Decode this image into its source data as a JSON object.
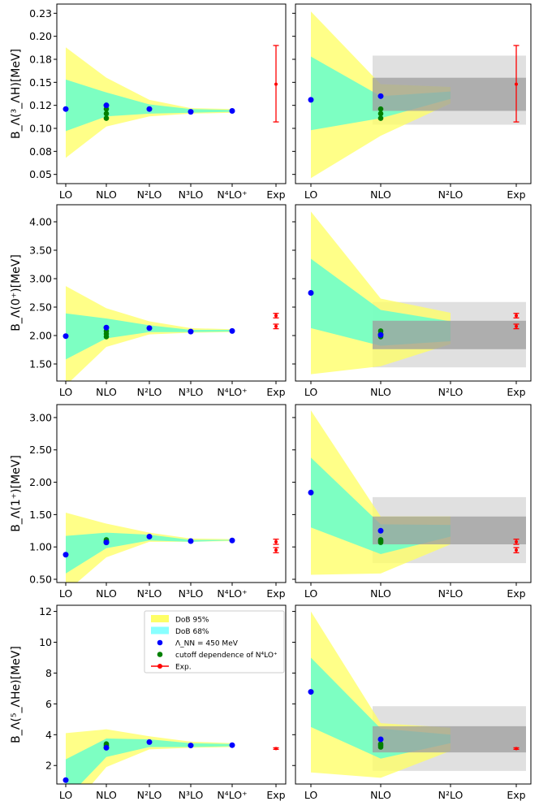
{
  "colors": {
    "dob95": "#ffff66",
    "dob68": "#66ffcc",
    "dob68_legend": "#88ffff",
    "point": "#0000ff",
    "cutoff": "#008000",
    "exp": "#ff0000",
    "band_light": "#e0e0e0",
    "band_dark": "#9e9e9e"
  },
  "legend": {
    "items": [
      {
        "label": "DoB 95%"
      },
      {
        "label": "DoB 68%"
      },
      {
        "label": "Λ_NN = 450 MeV"
      },
      {
        "label": "cutoff dependence of N⁴LO⁺"
      },
      {
        "label": "Exp."
      }
    ]
  },
  "chart_data": [
    {
      "type": "area",
      "panel": "row1-left",
      "ylabel": "B_Λ(³_ΛH)[MeV]",
      "categories": [
        "LO",
        "NLO",
        "N²LO",
        "N³LO",
        "N⁴LO⁺",
        "Exp"
      ],
      "ylim": [
        0.04,
        0.235
      ],
      "yticks": [
        "0.05",
        "0.08",
        "0.10",
        "0.12",
        "0.15",
        "0.18",
        "0.20",
        "0.23"
      ],
      "yticks_values": [
        0.05,
        0.075,
        0.1,
        0.125,
        0.15,
        0.175,
        0.2,
        0.225
      ],
      "band95_upper": [
        0.188,
        0.155,
        0.131,
        0.122,
        0.121
      ],
      "band95_lower": [
        0.068,
        0.102,
        0.113,
        0.116,
        0.117
      ],
      "band68_upper": [
        0.153,
        0.139,
        0.126,
        0.121,
        0.12
      ],
      "band68_lower": [
        0.097,
        0.113,
        0.116,
        0.117,
        0.118
      ],
      "points": [
        0.121,
        0.125,
        0.121,
        0.118,
        0.119
      ],
      "cutoff_points": [
        0.111,
        0.116,
        0.121
      ],
      "exp": [
        {
          "value": 0.148,
          "err_low": 0.041,
          "err_high": 0.042
        }
      ]
    },
    {
      "type": "area",
      "panel": "row1-right",
      "categories": [
        "LO",
        "NLO",
        "N²LO",
        "Exp"
      ],
      "ylim": [
        0.04,
        0.235
      ],
      "band95_upper": [
        0.227,
        0.148,
        0.145
      ],
      "band95_lower": [
        0.046,
        0.092,
        0.127
      ],
      "band68_upper": [
        0.178,
        0.135,
        0.14
      ],
      "band68_lower": [
        0.098,
        0.111,
        0.132
      ],
      "points": [
        0.131,
        0.135
      ],
      "cutoff_points": [
        0.111,
        0.116,
        0.121
      ],
      "exp": [
        {
          "value": 0.148,
          "err_low": 0.041,
          "err_high": 0.042
        }
      ],
      "band_light": [
        0.104,
        0.179
      ],
      "band_dark": [
        0.119,
        0.155
      ]
    },
    {
      "type": "area",
      "panel": "row2-left",
      "ylabel": "B_Λ(0⁺)[MeV]",
      "categories": [
        "LO",
        "NLO",
        "N²LO",
        "N³LO",
        "N⁴LO⁺",
        "Exp"
      ],
      "ylim": [
        1.2,
        4.3
      ],
      "yticks": [
        "1.50",
        "2.00",
        "2.50",
        "3.00",
        "3.50",
        "4.00"
      ],
      "yticks_values": [
        1.5,
        2.0,
        2.5,
        3.0,
        3.5,
        4.0
      ],
      "band95_upper": [
        2.87,
        2.48,
        2.25,
        2.13,
        2.11
      ],
      "band95_lower": [
        1.12,
        1.8,
        2.02,
        2.05,
        2.06
      ],
      "band68_upper": [
        2.39,
        2.3,
        2.18,
        2.1,
        2.1
      ],
      "band68_lower": [
        1.58,
        1.95,
        2.06,
        2.06,
        2.07
      ],
      "points": [
        1.99,
        2.14,
        2.13,
        2.07,
        2.08
      ],
      "cutoff_points": [
        1.98,
        2.03,
        2.08
      ],
      "exp": [
        {
          "value": 2.35,
          "err_low": 0.04,
          "err_high": 0.04
        },
        {
          "value": 2.16,
          "err_low": 0.04,
          "err_high": 0.04
        }
      ]
    },
    {
      "type": "area",
      "panel": "row2-right",
      "categories": [
        "LO",
        "NLO",
        "N²LO",
        "Exp"
      ],
      "ylim": [
        1.2,
        4.3
      ],
      "band95_upper": [
        4.18,
        2.65,
        2.4
      ],
      "band95_lower": [
        1.32,
        1.46,
        1.85
      ],
      "band68_upper": [
        3.35,
        2.45,
        2.25
      ],
      "band68_lower": [
        2.13,
        1.82,
        1.9
      ],
      "points": [
        2.75,
        2.01
      ],
      "cutoff_points": [
        1.98,
        2.03,
        2.08
      ],
      "exp": [
        {
          "value": 2.35,
          "err_low": 0.04,
          "err_high": 0.04
        },
        {
          "value": 2.16,
          "err_low": 0.04,
          "err_high": 0.04
        }
      ],
      "band_light": [
        1.44,
        2.59
      ],
      "band_dark": [
        1.76,
        2.26
      ]
    },
    {
      "type": "area",
      "panel": "row3-left",
      "ylabel": "B_Λ(1⁺)[MeV]",
      "categories": [
        "LO",
        "NLO",
        "N²LO",
        "N³LO",
        "N⁴LO⁺",
        "Exp"
      ],
      "ylim": [
        0.45,
        3.2
      ],
      "yticks": [
        "0.50",
        "1.00",
        "1.50",
        "2.00",
        "2.50",
        "3.00"
      ],
      "yticks_values": [
        0.5,
        1.0,
        1.5,
        2.0,
        2.5,
        3.0
      ],
      "band95_upper": [
        1.53,
        1.36,
        1.22,
        1.13,
        1.12
      ],
      "band95_lower": [
        0.3,
        0.84,
        1.08,
        1.08,
        1.09
      ],
      "band68_upper": [
        1.17,
        1.22,
        1.19,
        1.11,
        1.11
      ],
      "band68_lower": [
        0.59,
        0.98,
        1.1,
        1.08,
        1.1
      ],
      "points": [
        0.88,
        1.07,
        1.16,
        1.09,
        1.1
      ],
      "cutoff_points": [
        1.07,
        1.09,
        1.11
      ],
      "exp": [
        {
          "value": 1.08,
          "err_low": 0.04,
          "err_high": 0.04
        },
        {
          "value": 0.95,
          "err_low": 0.04,
          "err_high": 0.04
        }
      ]
    },
    {
      "type": "area",
      "panel": "row3-right",
      "categories": [
        "LO",
        "NLO",
        "N²LO",
        "Exp"
      ],
      "ylim": [
        0.45,
        3.2
      ],
      "band95_upper": [
        3.11,
        1.47,
        1.47
      ],
      "band95_lower": [
        0.57,
        0.59,
        1.04
      ],
      "band68_upper": [
        2.38,
        1.35,
        1.34
      ],
      "band68_lower": [
        1.3,
        0.89,
        1.16
      ],
      "points": [
        1.84,
        1.25
      ],
      "cutoff_points": [
        1.07,
        1.09,
        1.11
      ],
      "exp": [
        {
          "value": 1.08,
          "err_low": 0.04,
          "err_high": 0.04
        },
        {
          "value": 0.95,
          "err_low": 0.04,
          "err_high": 0.04
        }
      ],
      "band_light": [
        0.75,
        1.77
      ],
      "band_dark": [
        1.04,
        1.47
      ]
    },
    {
      "type": "area",
      "panel": "row4-left",
      "ylabel": "B_Λ(⁵_ΛHe)[MeV]",
      "categories": [
        "LO",
        "NLO",
        "N²LO",
        "N³LO",
        "N⁴LO⁺",
        "Exp"
      ],
      "ylim": [
        0.8,
        12.4
      ],
      "yticks": [
        "2",
        "4",
        "6",
        "8",
        "10",
        "12"
      ],
      "yticks_values": [
        2,
        4,
        6,
        8,
        10,
        12
      ],
      "band95_upper": [
        4.1,
        4.35,
        3.9,
        3.55,
        3.45
      ],
      "band95_lower": [
        -1.2,
        1.9,
        3.05,
        3.15,
        3.2
      ],
      "band68_upper": [
        2.4,
        3.75,
        3.7,
        3.45,
        3.4
      ],
      "band68_lower": [
        -0.2,
        2.55,
        3.2,
        3.2,
        3.25
      ],
      "points": [
        1.05,
        3.15,
        3.52,
        3.3,
        3.32
      ],
      "cutoff_points": [
        3.2,
        3.3,
        3.4
      ],
      "exp": [
        {
          "value": 3.1,
          "err_low": 0.05,
          "err_high": 0.05
        }
      ],
      "legend_loc": "upper-center"
    },
    {
      "type": "area",
      "panel": "row4-right",
      "categories": [
        "LO",
        "NLO",
        "N²LO",
        "Exp"
      ],
      "ylim": [
        0.8,
        12.4
      ],
      "band95_upper": [
        12.0,
        4.75,
        4.45
      ],
      "band95_lower": [
        1.55,
        1.2,
        2.95
      ],
      "band68_upper": [
        9.0,
        4.4,
        4.0
      ],
      "band68_lower": [
        4.5,
        2.45,
        3.45
      ],
      "points": [
        6.78,
        3.7
      ],
      "cutoff_points": [
        3.2,
        3.3,
        3.4
      ],
      "exp": [
        {
          "value": 3.1,
          "err_low": 0.05,
          "err_high": 0.05
        }
      ],
      "band_light": [
        1.65,
        5.85
      ],
      "band_dark": [
        2.85,
        4.55
      ]
    }
  ]
}
